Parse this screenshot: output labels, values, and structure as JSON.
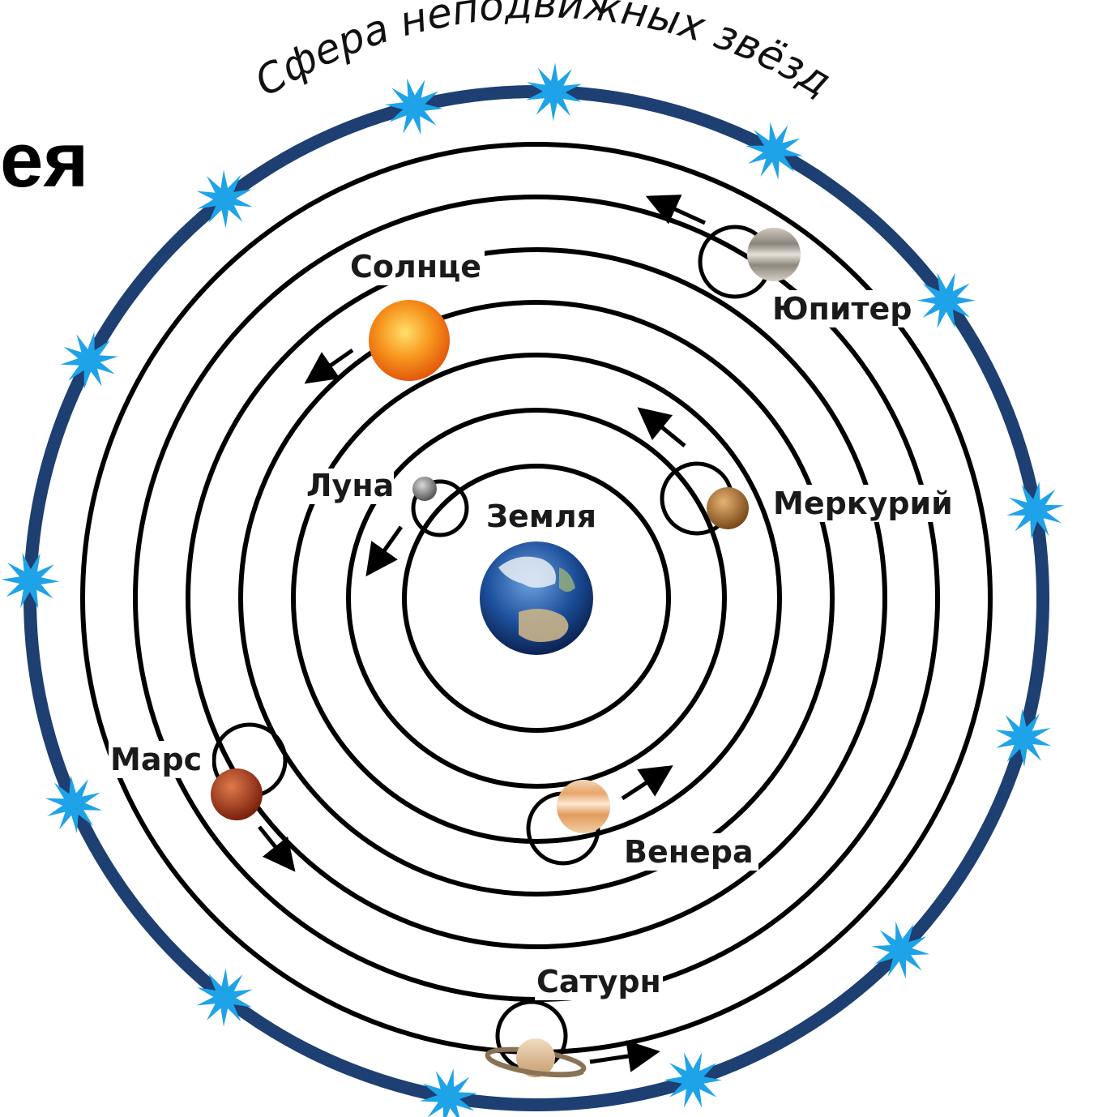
{
  "heading_fragment": "ея",
  "sphere_title": "Сфера неподвижных звёзд",
  "labels": {
    "sun": "Солнце",
    "jupiter": "Юпитер",
    "moon": "Луна",
    "earth": "Земля",
    "mercury": "Меркурий",
    "mars": "Марс",
    "venus": "Венера",
    "saturn": "Сатурн"
  },
  "colors": {
    "sphere_ring": "#1d3f72",
    "star": "#1fa3e8",
    "orbit": "#000000",
    "sun": "#f5901c",
    "mars": "#a8361b",
    "earth_ocean": "#1c4f9a"
  },
  "icons": {
    "stars": "star-burst-icon",
    "arrows": "orbit-direction-arrow-icon"
  }
}
